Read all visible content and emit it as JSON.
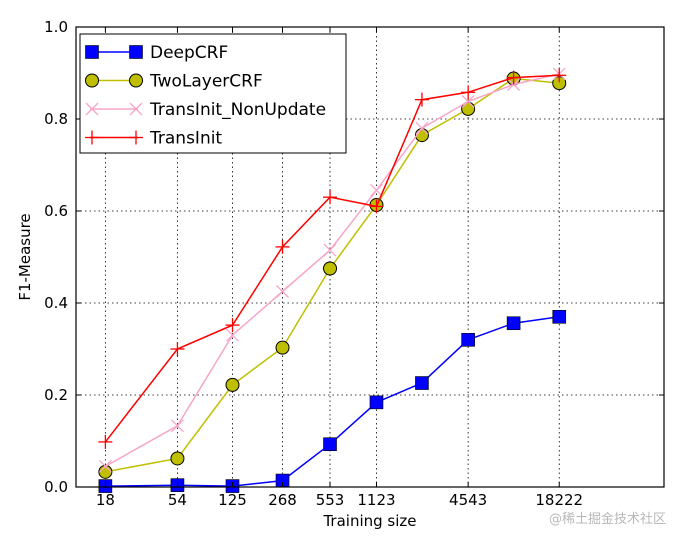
{
  "chart_data": {
    "type": "line",
    "xlabel": "Training size",
    "ylabel": "F1-Measure",
    "x_ticks": [
      "18",
      "54",
      "125",
      "268",
      "553",
      "1123",
      "4543",
      "18222"
    ],
    "ylim": [
      0.0,
      1.0
    ],
    "y_ticks": [
      "0.0",
      "0.2",
      "0.4",
      "0.6",
      "0.8",
      "1.0"
    ],
    "grid": true,
    "legend_position": "top-left",
    "series": [
      {
        "name": "DeepCRF",
        "color": "#0000ff",
        "marker": "square",
        "x": [
          18,
          54,
          125,
          268,
          553,
          1123,
          2246,
          4543,
          9086,
          18222
        ],
        "y": [
          0.002,
          0.004,
          0.002,
          0.014,
          0.093,
          0.184,
          0.226,
          0.32,
          0.356,
          0.37
        ]
      },
      {
        "name": "TwoLayerCRF",
        "color": "#bfbf00",
        "marker": "circle",
        "x": [
          18,
          54,
          125,
          268,
          553,
          1123,
          2246,
          4543,
          9086,
          18222
        ],
        "y": [
          0.033,
          0.062,
          0.222,
          0.303,
          0.475,
          0.613,
          0.765,
          0.822,
          0.888,
          0.878
        ]
      },
      {
        "name": "TransInit_NonUpdate",
        "color": "#f7a6c8",
        "marker": "x",
        "x": [
          18,
          54,
          125,
          268,
          553,
          1123,
          2246,
          4543,
          9086,
          18222
        ],
        "y": [
          0.045,
          0.133,
          0.33,
          0.425,
          0.515,
          0.645,
          0.78,
          0.838,
          0.875,
          0.898
        ]
      },
      {
        "name": "TransInit",
        "color": "#ff0000",
        "marker": "plus",
        "x": [
          18,
          54,
          125,
          268,
          553,
          1123,
          2246,
          4543,
          9086,
          18222
        ],
        "y": [
          0.098,
          0.3,
          0.352,
          0.522,
          0.63,
          0.61,
          0.842,
          0.858,
          0.89,
          0.895
        ]
      }
    ]
  },
  "watermark_text": "@稀土掘金技术社区"
}
